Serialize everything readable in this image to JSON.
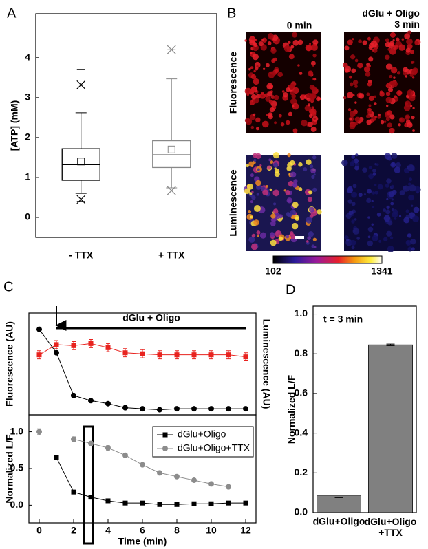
{
  "panel_labels": [
    "A",
    "B",
    "C",
    "D"
  ],
  "images": {
    "columns": [
      "0 min",
      "dGlu + Oligo\n3 min"
    ],
    "rows": [
      "Fluorescence",
      "Luminescence"
    ],
    "colorbar": {
      "min": 102,
      "max": 1341
    }
  },
  "chart_data": [
    {
      "type": "box",
      "ylabel": "[ATP] (mM)",
      "categories": [
        "- TTX",
        "+ TTX"
      ],
      "boxes": [
        {
          "color": "#000000",
          "whisker_low": 0.6,
          "q1": 0.93,
          "median": 1.32,
          "q3": 1.72,
          "whisker_high": 2.62,
          "mean": 1.4,
          "x_marks": [
            0.45,
            3.32
          ],
          "dash_marks": [
            0.4,
            3.7
          ]
        },
        {
          "color": "#888888",
          "whisker_low": 0.74,
          "q1": 1.25,
          "median": 1.57,
          "q3": 1.92,
          "whisker_high": 3.47,
          "mean": 1.7,
          "x_marks": [
            0.67,
            4.2
          ],
          "dash_marks": [
            0.74,
            4.2
          ]
        }
      ],
      "ylim": [
        -0.5,
        5.1
      ],
      "yticks": [
        0,
        1,
        2,
        3,
        4
      ]
    },
    {
      "type": "line",
      "ylabel": "Fluorescence (AU)",
      "y2label": "Luminescence (AU)",
      "annotation": "dGlu + Oligo",
      "x": [
        0,
        1,
        2,
        3,
        4,
        5,
        6,
        7,
        8,
        9,
        10,
        11,
        12
      ],
      "series": [
        {
          "color": "#e8231f",
          "marker": "square",
          "values": [
            0.59,
            0.69,
            0.68,
            0.7,
            0.66,
            0.61,
            0.6,
            0.59,
            0.59,
            0.59,
            0.59,
            0.59,
            0.57
          ],
          "errors": [
            0.04,
            0.04,
            0.04,
            0.04,
            0.04,
            0.04,
            0.04,
            0.04,
            0.04,
            0.04,
            0.04,
            0.04,
            0.04
          ]
        },
        {
          "color": "#000000",
          "marker": "circle",
          "axis": "y2",
          "values": [
            0.84,
            0.61,
            0.19,
            0.14,
            0.11,
            0.07,
            0.06,
            0.05,
            0.06,
            0.06,
            0.06,
            0.06,
            0.06
          ]
        }
      ],
      "xlim": [
        -0.6,
        12.6
      ],
      "ylim": [
        0,
        1
      ],
      "y2lim": [
        0,
        1
      ]
    },
    {
      "type": "line",
      "ylabel": "Normalized L/F",
      "xlabel": "Time (min)",
      "x": [
        0,
        1,
        2,
        3,
        4,
        5,
        6,
        7,
        8,
        9,
        10,
        11,
        12
      ],
      "series": [
        {
          "name": "dGlu+Oligo",
          "color": "#000000",
          "marker": "square",
          "values": [
            null,
            0.65,
            0.18,
            0.11,
            0.06,
            0.03,
            0.03,
            0.01,
            0.01,
            0.02,
            0.02,
            0.03,
            0.03
          ]
        },
        {
          "name": "dGlu+Oligo+TTX",
          "color": "#8c8c8c",
          "marker": "circle",
          "values": [
            1.0,
            null,
            0.9,
            0.84,
            0.78,
            0.68,
            0.55,
            0.44,
            0.39,
            0.34,
            0.29,
            0.25,
            null
          ],
          "errors": [
            0.04,
            null,
            0.03,
            0.03,
            0.03,
            0.02,
            0.02,
            0.02,
            0.02,
            0.02,
            0.02,
            0.02,
            null
          ]
        }
      ],
      "xlim": [
        -0.6,
        12.6
      ],
      "xticks": [
        0,
        2,
        4,
        6,
        8,
        10,
        12
      ],
      "ylim": [
        -0.24,
        1.23
      ],
      "yticks": [
        {
          "value": 0,
          "label": "0.0"
        },
        {
          "value": 0.5,
          "label": "0.5"
        },
        {
          "value": 1,
          "label": "1.0"
        }
      ],
      "legend": "upper right"
    },
    {
      "type": "bar",
      "ylabel": "Normalized L/F",
      "annotation": "t = 3 min",
      "categories": [
        "dGlu+Oligo",
        "dGlu+Oligo\n+TTX"
      ],
      "values": [
        0.087,
        0.845
      ],
      "errors": [
        0.012,
        0.004
      ],
      "color": "#808080",
      "ylim": [
        0,
        1.04
      ],
      "yticks": [
        {
          "value": 0,
          "label": "0.0"
        },
        {
          "value": 0.2,
          "label": "0.2"
        },
        {
          "value": 0.4,
          "label": "0.4"
        },
        {
          "value": 0.6,
          "label": "0.6"
        },
        {
          "value": 0.8,
          "label": "0.8"
        },
        {
          "value": 1,
          "label": "1.0"
        }
      ]
    }
  ]
}
